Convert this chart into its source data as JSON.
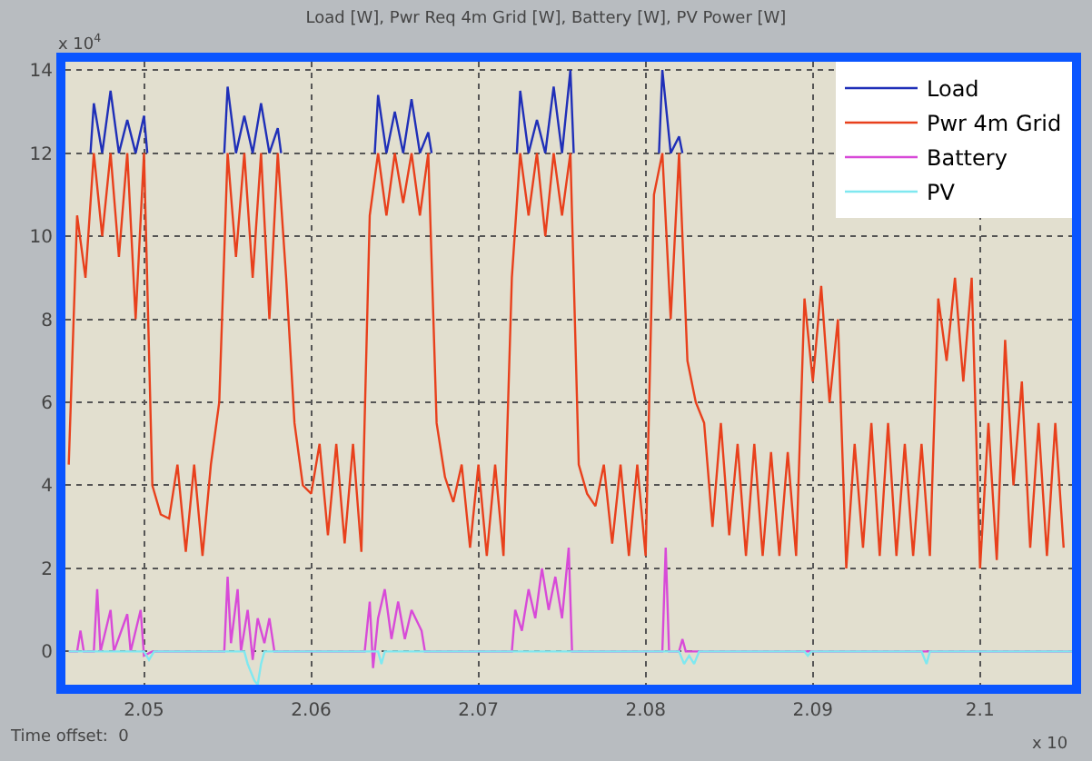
{
  "chart_data": {
    "type": "line",
    "title": "Load [W], Pwr Req 4m Grid [W], Battery [W], PV Power [W]",
    "annotations": [
      "x 10$^{4}$",
      "Time offset:  0",
      "x 10"
    ],
    "x": [
      2.0455,
      2.046,
      2.0465,
      2.047,
      2.0475,
      2.048,
      2.0485,
      2.049,
      2.0495,
      2.05,
      2.0505,
      2.051,
      2.0515,
      2.052,
      2.0525,
      2.053,
      2.0535,
      2.054,
      2.0545,
      2.055,
      2.0555,
      2.056,
      2.0565,
      2.057,
      2.0575,
      2.058,
      2.0585,
      2.059,
      2.0595,
      2.06,
      2.0605,
      2.061,
      2.0615,
      2.062,
      2.0625,
      2.063,
      2.0635,
      2.064,
      2.0645,
      2.065,
      2.0655,
      2.066,
      2.0665,
      2.067,
      2.0675,
      2.068,
      2.0685,
      2.069,
      2.0695,
      2.07,
      2.0705,
      2.071,
      2.0715,
      2.072,
      2.0725,
      2.073,
      2.0735,
      2.074,
      2.0745,
      2.075,
      2.0755,
      2.076,
      2.0765,
      2.077,
      2.0775,
      2.078,
      2.0785,
      2.079,
      2.0795,
      2.08,
      2.0805,
      2.081,
      2.0815,
      2.082,
      2.0825,
      2.083,
      2.0835,
      2.084,
      2.0845,
      2.085,
      2.0855,
      2.086,
      2.0865,
      2.087,
      2.0875,
      2.088,
      2.0885,
      2.089,
      2.0895,
      2.09,
      2.0905,
      2.091,
      2.0915,
      2.092,
      2.0925,
      2.093,
      2.0935,
      2.094,
      2.0945,
      2.095,
      2.0955,
      2.096,
      2.0965,
      2.097,
      2.0975,
      2.098,
      2.0985,
      2.099,
      2.0995,
      2.1,
      2.1005,
      2.101,
      2.1015,
      2.102,
      2.1025,
      2.103,
      2.1035,
      2.104,
      2.1045,
      2.105
    ],
    "series": [
      {
        "name": "Load",
        "color": "#1f2fb8",
        "x": [
          2.0468,
          2.047,
          2.0475,
          2.048,
          2.0485,
          2.049,
          2.0495,
          2.05,
          2.0502,
          2.0525,
          2.0548,
          2.055,
          2.0555,
          2.056,
          2.0565,
          2.057,
          2.0575,
          2.058,
          2.0582,
          2.061,
          2.0638,
          2.064,
          2.0645,
          2.065,
          2.0655,
          2.066,
          2.0665,
          2.067,
          2.0672,
          2.0695,
          2.0723,
          2.0725,
          2.073,
          2.0735,
          2.074,
          2.0745,
          2.075,
          2.0755,
          2.0757,
          2.078,
          2.0808,
          2.081,
          2.0815,
          2.082,
          2.0822
        ],
        "values": [
          12,
          13.2,
          12,
          13.5,
          12,
          12.8,
          12,
          12.9,
          12,
          null,
          12,
          13.6,
          12,
          12.9,
          12,
          13.2,
          12,
          12.6,
          12,
          null,
          12,
          13.4,
          12,
          13,
          12,
          13.3,
          12,
          12.5,
          12,
          null,
          12,
          13.5,
          12,
          12.8,
          12,
          13.6,
          12,
          14,
          12,
          null,
          12,
          14,
          12,
          12.4,
          12
        ]
      },
      {
        "name": "Pwr 4m Grid",
        "color": "#e8401c",
        "values": [
          4.5,
          10.5,
          9,
          12,
          10,
          12,
          9.5,
          12,
          8,
          12,
          4,
          3.3,
          3.2,
          4.5,
          2.4,
          4.5,
          2.3,
          4.5,
          6,
          12,
          9.5,
          12,
          9,
          12,
          8,
          12,
          9,
          5.5,
          4,
          3.8,
          5,
          2.8,
          5,
          2.6,
          5,
          2.4,
          10.5,
          12,
          10.5,
          12,
          10.8,
          12,
          10.5,
          12,
          5.5,
          4.2,
          3.6,
          4.5,
          2.5,
          4.5,
          2.3,
          4.5,
          2.3,
          9,
          12,
          10.5,
          12,
          10,
          12,
          10.5,
          12,
          4.5,
          3.8,
          3.5,
          4.5,
          2.6,
          4.5,
          2.3,
          4.5,
          2.3,
          11,
          12,
          8,
          12,
          7,
          6,
          5.5,
          3,
          5.5,
          2.8,
          5,
          2.3,
          5,
          2.3,
          4.8,
          2.3,
          4.8,
          2.3,
          8.5,
          6.5,
          8.8,
          6,
          8,
          2,
          5,
          2.5,
          5.5,
          2.3,
          5.5,
          2.3,
          5,
          2.3,
          5,
          2.3,
          8.5,
          7,
          9,
          6.5,
          9,
          2,
          5.5,
          2.2,
          7.5,
          4,
          6.5,
          2.5,
          5.5,
          2.3,
          5.5,
          2.5
        ]
      },
      {
        "name": "Battery",
        "color": "#d84ad8",
        "x": [
          2.0455,
          2.046,
          2.0462,
          2.0464,
          2.047,
          2.0472,
          2.0474,
          2.048,
          2.0482,
          2.049,
          2.0492,
          2.0498,
          2.05,
          2.0505,
          2.0548,
          2.055,
          2.0552,
          2.0556,
          2.0558,
          2.0562,
          2.0565,
          2.0568,
          2.0572,
          2.0575,
          2.0578,
          2.0632,
          2.0635,
          2.0637,
          2.064,
          2.0644,
          2.0648,
          2.0652,
          2.0656,
          2.066,
          2.0666,
          2.0668,
          2.072,
          2.0722,
          2.0726,
          2.073,
          2.0734,
          2.0738,
          2.0742,
          2.0746,
          2.075,
          2.0754,
          2.0756,
          2.081,
          2.0812,
          2.0814,
          2.082,
          2.0822,
          2.0824,
          2.1055
        ],
        "values": [
          0,
          0,
          0.5,
          0,
          0,
          1.5,
          0,
          1,
          0,
          0.9,
          0,
          1,
          -0.1,
          0,
          0,
          1.8,
          0.2,
          1.5,
          0,
          1,
          -0.2,
          0.8,
          0.2,
          0.8,
          0,
          0,
          1.2,
          -0.4,
          0.8,
          1.5,
          0.3,
          1.2,
          0.3,
          1,
          0.5,
          0,
          0,
          1,
          0.5,
          1.5,
          0.8,
          2,
          1,
          1.8,
          0.8,
          2.5,
          0,
          0,
          2.5,
          0,
          0,
          0.3,
          0,
          0
        ]
      },
      {
        "name": "PV",
        "color": "#7fe8f0",
        "x": [
          2.0455,
          2.05,
          2.0503,
          2.0506,
          2.056,
          2.0562,
          2.0566,
          2.0568,
          2.057,
          2.0572,
          2.064,
          2.0642,
          2.0644,
          2.082,
          2.0823,
          2.0826,
          2.0829,
          2.0832,
          2.0895,
          2.0897,
          2.0899,
          2.0965,
          2.0968,
          2.097,
          2.1055
        ],
        "values": [
          0,
          0,
          -0.2,
          0,
          0,
          -0.3,
          -0.7,
          -0.8,
          -0.3,
          0,
          0,
          -0.3,
          0,
          0,
          -0.3,
          -0.1,
          -0.3,
          0,
          0,
          -0.1,
          0,
          0,
          -0.3,
          0,
          0
        ]
      }
    ],
    "xlim": [
      2.0453,
      2.1055
    ],
    "xticks": [
      2.05,
      2.06,
      2.07,
      2.08,
      2.09,
      2.1
    ],
    "ylim": [
      -0.8,
      14.2
    ],
    "yticks": [
      0,
      2,
      4,
      6,
      8,
      10,
      12,
      14
    ],
    "grid": true,
    "legend": "top right",
    "marker": "none",
    "line_style": "solid"
  }
}
